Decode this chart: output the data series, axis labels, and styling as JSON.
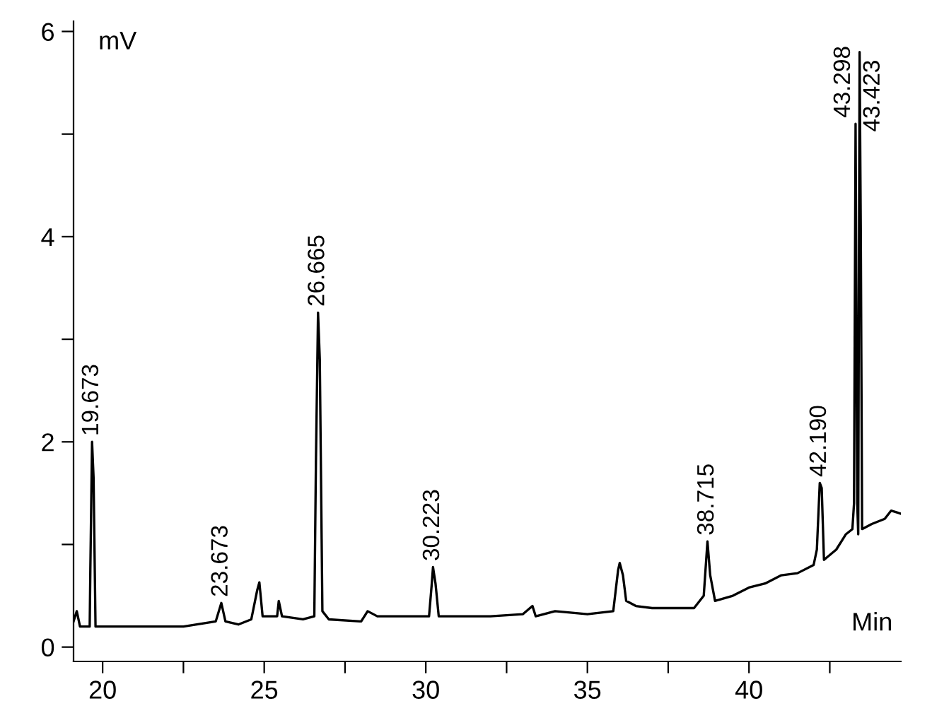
{
  "chart_data": {
    "type": "line",
    "xlabel": "Min",
    "ylabel": "mV",
    "xlim": [
      19.1,
      44.7
    ],
    "ylim": [
      -0.14,
      6.1
    ],
    "xticks": [
      20,
      {
        "value": 22.5,
        "label": null
      },
      25,
      {
        "value": 27.5,
        "label": null
      },
      30,
      {
        "value": 32.5,
        "label": null
      },
      35,
      {
        "value": 37.5,
        "label": null
      },
      40,
      {
        "value": 42.5,
        "label": null
      }
    ],
    "yticks": [
      0,
      {
        "value": 1,
        "label": null
      },
      2,
      {
        "value": 3,
        "label": null
      },
      4,
      {
        "value": 5,
        "label": null
      },
      6
    ],
    "grid": false,
    "legend": false,
    "series": [
      {
        "color": "#000000",
        "x": [
          19.1,
          19.2,
          19.3,
          19.6,
          19.62,
          19.673,
          19.72,
          19.78,
          20.5,
          21.5,
          22.5,
          23.5,
          23.673,
          23.8,
          24.2,
          24.6,
          24.78,
          24.85,
          24.95,
          25.4,
          25.45,
          25.55,
          26.2,
          26.55,
          26.6,
          26.665,
          26.72,
          26.8,
          27.0,
          28.0,
          28.2,
          28.5,
          29.0,
          29.5,
          30.1,
          30.18,
          30.223,
          30.3,
          30.4,
          31,
          32,
          33,
          33.3,
          33.4,
          34,
          35,
          35.8,
          35.95,
          36.0,
          36.1,
          36.2,
          36.5,
          37,
          38.3,
          38.6,
          38.715,
          38.8,
          38.95,
          39.5,
          40,
          40.5,
          41,
          41.5,
          42,
          42.1,
          42.19,
          42.25,
          42.32,
          42.7,
          43.0,
          43.2,
          43.25,
          43.298,
          43.35,
          43.38,
          43.4,
          43.423,
          43.46,
          43.5,
          43.8,
          44.2,
          44.4,
          44.7
        ],
        "values": [
          0.25,
          0.35,
          0.2,
          0.2,
          0.75,
          2.0,
          1.65,
          0.2,
          0.2,
          0.2,
          0.2,
          0.25,
          0.43,
          0.25,
          0.22,
          0.27,
          0.55,
          0.63,
          0.3,
          0.3,
          0.45,
          0.3,
          0.27,
          0.3,
          1.8,
          3.26,
          2.8,
          0.35,
          0.27,
          0.25,
          0.35,
          0.3,
          0.3,
          0.3,
          0.3,
          0.6,
          0.78,
          0.62,
          0.3,
          0.3,
          0.3,
          0.32,
          0.4,
          0.3,
          0.35,
          0.32,
          0.35,
          0.75,
          0.82,
          0.7,
          0.45,
          0.4,
          0.38,
          0.38,
          0.5,
          1.03,
          0.7,
          0.45,
          0.5,
          0.58,
          0.62,
          0.7,
          0.72,
          0.8,
          0.95,
          1.6,
          1.55,
          0.85,
          0.95,
          1.1,
          1.15,
          1.4,
          5.1,
          1.4,
          1.1,
          3.5,
          5.8,
          4.0,
          1.15,
          1.2,
          1.25,
          1.33,
          1.3
        ]
      }
    ],
    "annotations": [
      {
        "text": "19.673",
        "x": 19.673,
        "y": 2.0
      },
      {
        "text": "23.673",
        "x": 23.673,
        "y": 0.43
      },
      {
        "text": "26.665",
        "x": 26.665,
        "y": 3.26
      },
      {
        "text": "30.223",
        "x": 30.223,
        "y": 0.78
      },
      {
        "text": "38.715",
        "x": 38.715,
        "y": 1.03
      },
      {
        "text": "42.190",
        "x": 42.19,
        "y": 1.6
      },
      {
        "text": "43.298",
        "x": 43.298,
        "y": 5.1
      },
      {
        "text": "43.423",
        "x": 43.423,
        "y": 5.8
      }
    ]
  }
}
